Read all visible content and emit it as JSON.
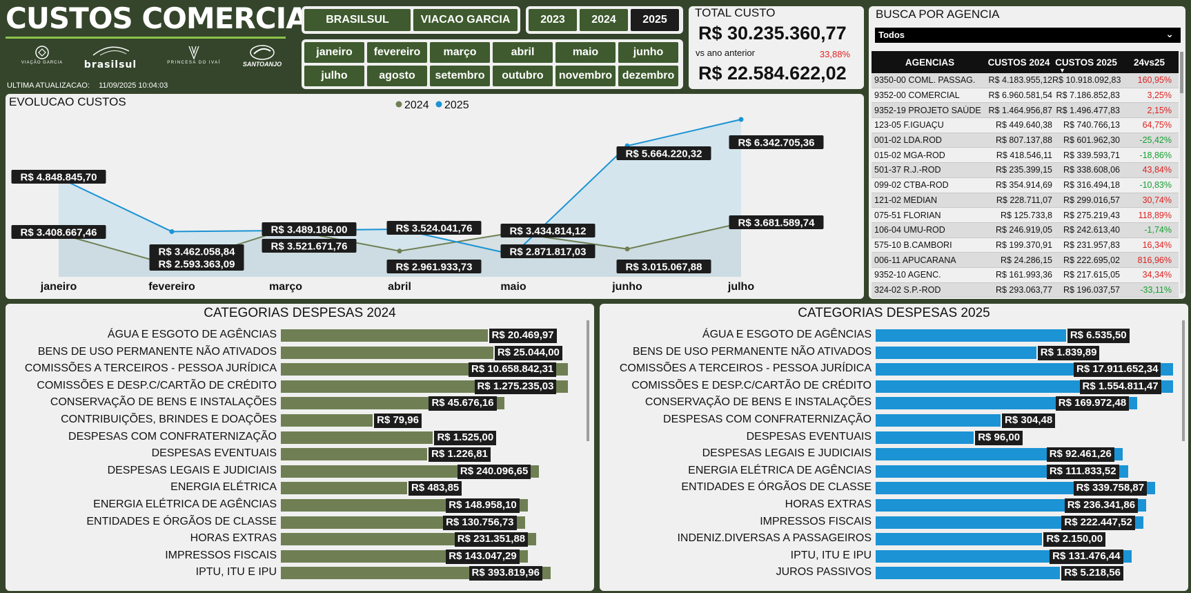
{
  "header": {
    "title": "CUSTOS COMERCIAIS",
    "update_label": "ULTIMA ATUALIZACAO:",
    "update_value": "11/09/2025 10:04:03",
    "logos": [
      "VIAÇÃO GARCIA",
      "brasilsul",
      "PRINCESA DO IVAÍ",
      "SANTOANJO"
    ]
  },
  "slicers": {
    "company": [
      {
        "label": "BRASILSUL",
        "selected": false
      },
      {
        "label": "VIACAO GARCIA",
        "selected": false
      }
    ],
    "year": [
      {
        "label": "2023",
        "selected": false
      },
      {
        "label": "2024",
        "selected": false
      },
      {
        "label": "2025",
        "selected": true
      }
    ],
    "months": [
      "janeiro",
      "fevereiro",
      "março",
      "abril",
      "maio",
      "junho",
      "julho",
      "agosto",
      "setembro",
      "outubro",
      "novembro",
      "dezembro"
    ]
  },
  "total_card": {
    "label": "TOTAL CUSTO",
    "value": "R$ 30.235.360,77",
    "vs_label": "vs ano anterior",
    "vs_pct": "33,88%",
    "prev_value": "R$ 22.584.622,02"
  },
  "agency": {
    "title": "BUSCA POR AGENCIA",
    "select_value": "Todos",
    "columns": [
      "AGENCIAS",
      "CUSTOS 2024",
      "CUSTOS 2025",
      "24vs25"
    ],
    "rows": [
      [
        "9350-00 COML. PASSAG.",
        "R$ 4.183.955,12",
        "R$ 10.918.092,83",
        "160,95%",
        "pos"
      ],
      [
        "9352-00 COMERCIAL",
        "R$ 6.960.581,54",
        "R$ 7.186.852,83",
        "3,25%",
        "pos"
      ],
      [
        "9352-19 PROJETO SAÚDE",
        "R$ 1.464.956,87",
        "R$ 1.496.477,83",
        "2,15%",
        "pos"
      ],
      [
        "123-05 F.IGUAÇU",
        "R$ 449.640,38",
        "R$ 740.766,13",
        "64,75%",
        "pos"
      ],
      [
        "001-02 LDA.ROD",
        "R$ 807.137,88",
        "R$ 601.962,30",
        "-25,42%",
        "neg"
      ],
      [
        "015-02 MGA-ROD",
        "R$ 418.546,11",
        "R$ 339.593,71",
        "-18,86%",
        "neg"
      ],
      [
        "501-37 R.J.-ROD",
        "R$ 235.399,15",
        "R$ 338.608,06",
        "43,84%",
        "pos"
      ],
      [
        "099-02 CTBA-ROD",
        "R$ 354.914,69",
        "R$ 316.494,18",
        "-10,83%",
        "neg"
      ],
      [
        "121-02 MEDIAN",
        "R$ 228.711,07",
        "R$ 299.016,57",
        "30,74%",
        "pos"
      ],
      [
        "075-51 FLORIAN",
        "R$ 125.733,8",
        "R$ 275.219,43",
        "118,89%",
        "pos"
      ],
      [
        "106-04 UMU-ROD",
        "R$ 246.919,05",
        "R$ 242.613,40",
        "-1,74%",
        "neg"
      ],
      [
        "575-10 B.CAMBORI",
        "R$ 199.370,91",
        "R$ 231.957,83",
        "16,34%",
        "pos"
      ],
      [
        "006-11 APUCARANA",
        "R$ 24.286,15",
        "R$ 222.695,02",
        "816,96%",
        "pos"
      ],
      [
        "9352-10 AGENC.",
        "R$ 161.993,36",
        "R$ 217.615,05",
        "34,34%",
        "pos"
      ],
      [
        "324-02 S.P.-ROD",
        "R$ 293.063,77",
        "R$ 196.037,57",
        "-33,11%",
        "neg"
      ]
    ]
  },
  "evolution": {
    "title": "EVOLUCAO CUSTOS",
    "chart_data": {
      "type": "line",
      "categories": [
        "janeiro",
        "fevereiro",
        "março",
        "abril",
        "maio",
        "junho",
        "julho"
      ],
      "series": [
        {
          "name": "2024",
          "color": "#6f7f53",
          "values": [
            3408667.46,
            2593363.09,
            3521671.76,
            2961933.73,
            3434814.12,
            3015067.88,
            3681589.74
          ],
          "labels": [
            "R$ 3.408.667,46",
            "R$ 2.593.363,09",
            "R$ 3.521.671,76",
            "R$ 2.961.933,73",
            "R$ 3.434.814,12",
            "R$ 3.015.067,88",
            "R$ 3.681.589,74"
          ]
        },
        {
          "name": "2025",
          "color": "#1b93d4",
          "values": [
            4848845.7,
            3462058.84,
            3489186.0,
            3524041.76,
            2871817.03,
            5664220.32,
            6342705.36
          ],
          "labels": [
            "R$ 4.848.845,70",
            "R$ 3.462.058,84",
            "R$ 3.489.186,00",
            "R$ 3.524.041,76",
            "R$ 2.871.817,03",
            "R$ 5.664.220,32",
            "R$ 6.342.705,36"
          ]
        }
      ]
    }
  },
  "bars2024": {
    "title": "CATEGORIAS DESPESAS 2024",
    "color": "#6f7f53",
    "chart_data": {
      "type": "bar",
      "categories": [
        "ÁGUA E ESGOTO DE AGÊNCIAS",
        "BENS DE USO PERMANENTE NÃO ATIVADOS",
        "COMISSÕES A TERCEIROS - PESSOA JURÍDICA",
        "COMISSÕES E DESP.C/CARTÃO DE CRÉDITO",
        "CONSERVAÇÃO DE BENS E INSTALAÇÕES",
        "CONTRIBUIÇÕES, BRINDES E DOAÇÕES",
        "DESPESAS COM CONFRATERNIZAÇÃO",
        "DESPESAS EVENTUAIS",
        "DESPESAS LEGAIS E JUDICIAIS",
        "ENERGIA ELÉTRICA",
        "ENERGIA ELÉTRICA DE AGÊNCIAS",
        "ENTIDADES E ÓRGÃOS DE CLASSE",
        "HORAS EXTRAS",
        "IMPRESSOS FISCAIS",
        "IPTU, ITU E IPU"
      ],
      "values": [
        20469.97,
        25044.0,
        10658842.31,
        1275235.03,
        45676.16,
        79.96,
        1525.0,
        1226.81,
        240096.65,
        483.85,
        148958.1,
        130756.73,
        231351.88,
        143047.29,
        393819.96
      ],
      "labels": [
        "R$ 20.469,97",
        "R$ 25.044,00",
        "R$ 10.658.842,31",
        "R$ 1.275.235,03",
        "R$ 45.676,16",
        "R$ 79,96",
        "R$ 1.525,00",
        "R$ 1.226,81",
        "R$ 240.096,65",
        "R$ 483,85",
        "R$ 148.958,10",
        "R$ 130.756,73",
        "R$ 231.351,88",
        "R$ 143.047,29",
        "R$ 393.819,96"
      ],
      "fill": [
        0.72,
        0.74,
        1.0,
        1.0,
        0.78,
        0.32,
        0.53,
        0.51,
        0.9,
        0.44,
        0.86,
        0.85,
        0.89,
        0.86,
        0.94
      ]
    }
  },
  "bars2025": {
    "title": "CATEGORIAS DESPESAS 2025",
    "color": "#1b93d4",
    "chart_data": {
      "type": "bar",
      "categories": [
        "ÁGUA E ESGOTO DE AGÊNCIAS",
        "BENS DE USO PERMANENTE NÃO ATIVADOS",
        "COMISSÕES A TERCEIROS - PESSOA JURÍDICA",
        "COMISSÕES E DESP.C/CARTÃO DE CRÉDITO",
        "CONSERVAÇÃO DE BENS E INSTALAÇÕES",
        "DESPESAS COM CONFRATERNIZAÇÃO",
        "DESPESAS EVENTUAIS",
        "DESPESAS LEGAIS E JUDICIAIS",
        "ENERGIA ELÉTRICA DE AGÊNCIAS",
        "ENTIDADES E ÓRGÃOS DE CLASSE",
        "HORAS EXTRAS",
        "IMPRESSOS FISCAIS",
        "INDENIZ.DIVERSAS A PASSAGEIROS",
        "IPTU, ITU E IPU",
        "JUROS PASSIVOS"
      ],
      "values": [
        6535.5,
        1839.89,
        17911652.34,
        1554811.47,
        169972.48,
        304.48,
        96.0,
        92461.26,
        111833.52,
        339758.87,
        236341.86,
        222447.52,
        2150.0,
        131476.44,
        5218.56
      ],
      "labels": [
        "R$ 6.535,50",
        "R$ 1.839,89",
        "R$ 17.911.652,34",
        "R$ 1.554.811,47",
        "R$ 169.972,48",
        "R$ 304,48",
        "R$ 96,00",
        "R$ 92.461,26",
        "R$ 111.833,52",
        "R$ 339.758,87",
        "R$ 236.341,86",
        "R$ 222.447,52",
        "R$ 2.150,00",
        "R$ 131.476,44",
        "R$ 5.218,56"
      ],
      "fill": [
        0.64,
        0.54,
        1.0,
        1.0,
        0.88,
        0.42,
        0.33,
        0.83,
        0.85,
        0.94,
        0.91,
        0.9,
        0.56,
        0.86,
        0.62
      ]
    }
  }
}
